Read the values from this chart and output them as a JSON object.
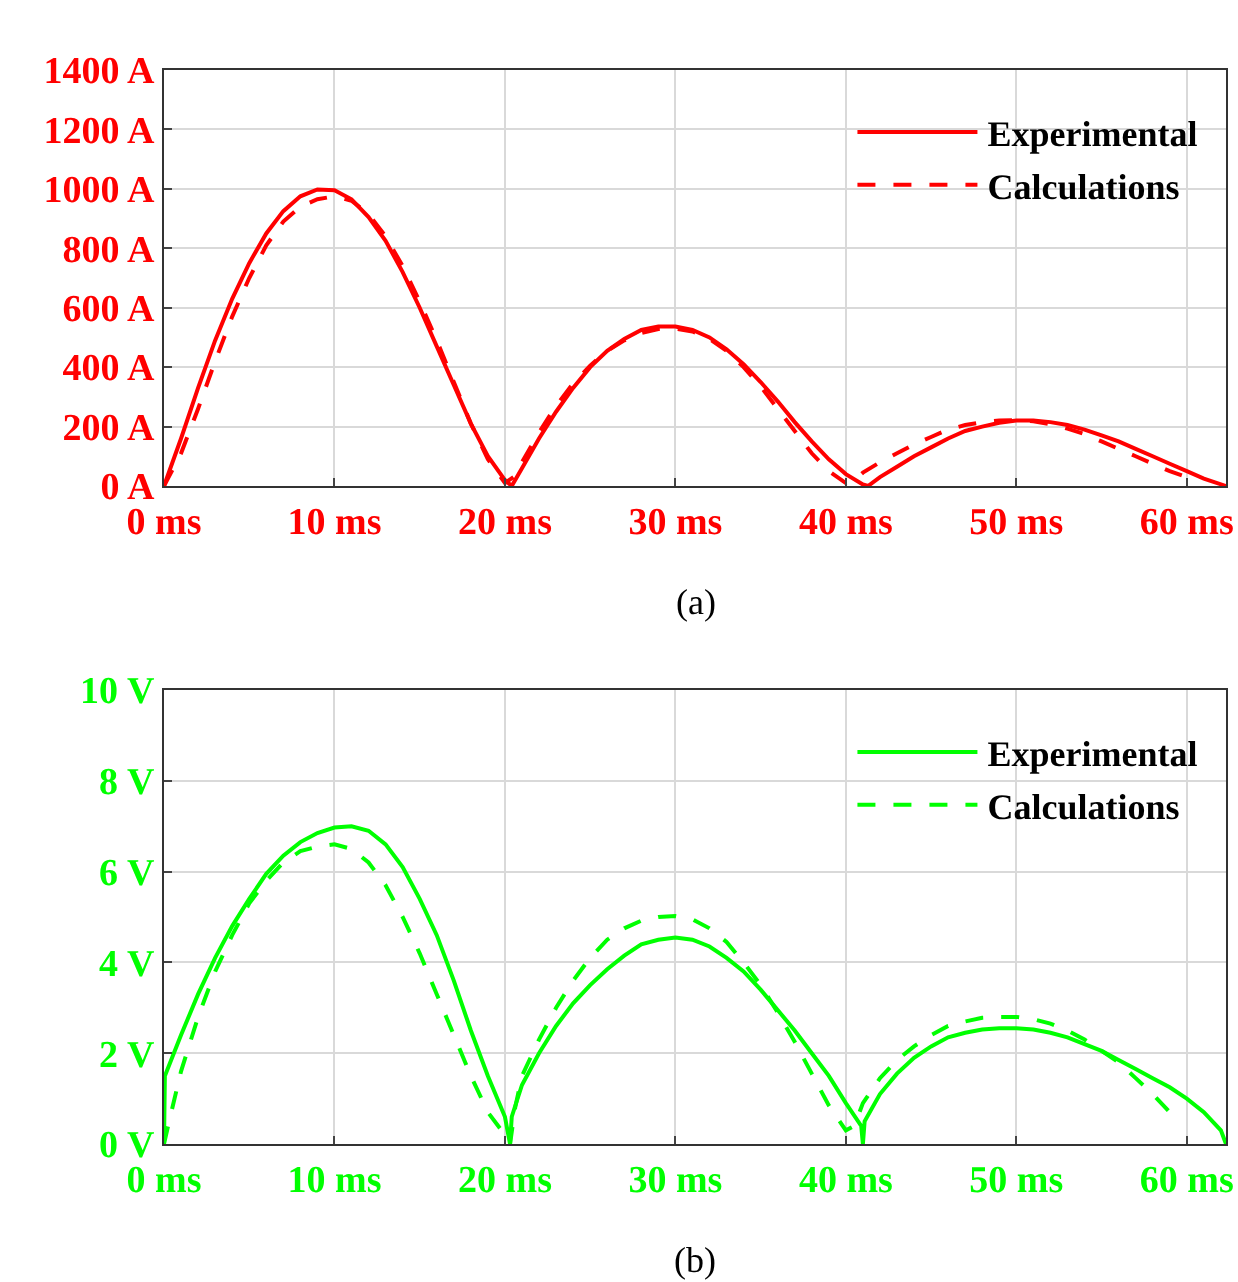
{
  "chart_data": [
    {
      "type": "line",
      "annotations": [
        "(a)"
      ],
      "legend": "top right",
      "grid": true,
      "xlim": [
        0,
        62.3
      ],
      "xticks": [
        {
          "value": 0,
          "label": "0 ms"
        },
        {
          "value": 10,
          "label": "10 ms"
        },
        {
          "value": 20,
          "label": "20 ms"
        },
        {
          "value": 30,
          "label": "30 ms"
        },
        {
          "value": 40,
          "label": "40 ms"
        },
        {
          "value": 50,
          "label": "50 ms"
        },
        {
          "value": 60,
          "label": "60 ms"
        }
      ],
      "ylim": [
        0,
        1400
      ],
      "yticks": [
        {
          "value": 0,
          "label": "0 A"
        },
        {
          "value": 200,
          "label": "200 A"
        },
        {
          "value": 400,
          "label": "400 A"
        },
        {
          "value": 600,
          "label": "600 A"
        },
        {
          "value": 800,
          "label": "800 A"
        },
        {
          "value": 1000,
          "label": "1000 A"
        },
        {
          "value": 1200,
          "label": "1200 A"
        },
        {
          "value": 1400,
          "label": "1400 A"
        }
      ],
      "series": [
        {
          "name": "Experimental",
          "color": "#ff0000",
          "line_style": "solid",
          "x": [
            0,
            1,
            2,
            3,
            4,
            5,
            6,
            7,
            8,
            9,
            10,
            11,
            12,
            13,
            14,
            15,
            16,
            17,
            18,
            19,
            20,
            20.4,
            21,
            22,
            23,
            24,
            25,
            26,
            27,
            28,
            29,
            30,
            31,
            32,
            33,
            34,
            35,
            36,
            37,
            38,
            39,
            40,
            41,
            41.3,
            42,
            43,
            44,
            45,
            46,
            47,
            48,
            49,
            50,
            51,
            52,
            53,
            54,
            55,
            56,
            57,
            58,
            59,
            60,
            61,
            62.3
          ],
          "values": [
            0,
            160,
            330,
            490,
            630,
            750,
            850,
            925,
            975,
            998,
            995,
            965,
            905,
            825,
            720,
            600,
            470,
            340,
            210,
            100,
            20,
            0,
            60,
            160,
            250,
            330,
            400,
            455,
            495,
            525,
            537,
            537,
            525,
            500,
            460,
            410,
            350,
            285,
            215,
            150,
            90,
            40,
            5,
            0,
            30,
            65,
            100,
            130,
            160,
            185,
            200,
            213,
            220,
            220,
            215,
            205,
            190,
            170,
            150,
            125,
            100,
            75,
            50,
            25,
            0
          ]
        },
        {
          "name": "Calculations",
          "color": "#ff0000",
          "line_style": "dashed",
          "x": [
            0,
            1,
            2,
            3,
            4,
            5,
            6,
            7,
            8,
            9,
            10,
            11,
            12,
            13,
            14,
            15,
            16,
            17,
            18,
            19,
            20,
            20.5,
            21,
            22,
            23,
            24,
            25,
            26,
            27,
            28,
            29,
            30,
            31,
            32,
            33,
            34,
            35,
            36,
            37,
            38,
            39,
            40,
            40.5,
            41,
            42,
            43,
            44,
            45,
            46,
            47,
            48,
            49,
            50,
            51,
            52,
            53,
            54,
            55,
            56,
            57,
            58,
            59,
            60,
            60.3
          ],
          "values": [
            0,
            110,
            260,
            420,
            570,
            700,
            810,
            890,
            940,
            965,
            975,
            960,
            915,
            840,
            740,
            620,
            490,
            350,
            210,
            90,
            10,
            30,
            80,
            180,
            270,
            345,
            405,
            455,
            490,
            515,
            528,
            530,
            520,
            495,
            455,
            400,
            335,
            260,
            185,
            110,
            50,
            10,
            20,
            45,
            80,
            110,
            140,
            165,
            190,
            205,
            215,
            220,
            222,
            218,
            208,
            193,
            175,
            150,
            125,
            100,
            75,
            50,
            30,
            20
          ]
        }
      ]
    },
    {
      "type": "line",
      "annotations": [
        "(b)"
      ],
      "legend": "top right",
      "grid": true,
      "xlim": [
        0,
        62.3
      ],
      "xticks": [
        {
          "value": 0,
          "label": "0 ms"
        },
        {
          "value": 10,
          "label": "10 ms"
        },
        {
          "value": 20,
          "label": "20 ms"
        },
        {
          "value": 30,
          "label": "30 ms"
        },
        {
          "value": 40,
          "label": "40 ms"
        },
        {
          "value": 50,
          "label": "50 ms"
        },
        {
          "value": 60,
          "label": "60 ms"
        }
      ],
      "ylim": [
        0,
        10
      ],
      "yticks": [
        {
          "value": 0,
          "label": "0 V"
        },
        {
          "value": 2,
          "label": "2 V"
        },
        {
          "value": 4,
          "label": "4 V"
        },
        {
          "value": 6,
          "label": "6 V"
        },
        {
          "value": 8,
          "label": "8 V"
        },
        {
          "value": 10,
          "label": "10 V"
        }
      ],
      "series": [
        {
          "name": "Experimental",
          "color": "#00ff00",
          "line_style": "solid",
          "x": [
            0,
            0.05,
            1,
            2,
            3,
            4,
            5,
            6,
            7,
            8,
            9,
            10,
            11,
            12,
            13,
            14,
            15,
            16,
            17,
            18,
            19,
            20,
            20.3,
            20.4,
            21,
            22,
            23,
            24,
            25,
            26,
            27,
            28,
            29,
            30,
            31,
            32,
            33,
            34,
            35,
            36,
            37,
            38,
            39,
            40,
            40.9,
            41,
            41.1,
            42,
            43,
            44,
            45,
            46,
            47,
            48,
            49,
            50,
            51,
            52,
            53,
            54,
            55,
            56,
            57,
            58,
            59,
            60,
            61,
            62,
            62.3
          ],
          "values": [
            0,
            1.5,
            2.4,
            3.3,
            4.1,
            4.8,
            5.4,
            5.95,
            6.35,
            6.65,
            6.85,
            6.97,
            7.0,
            6.9,
            6.6,
            6.1,
            5.4,
            4.6,
            3.6,
            2.5,
            1.5,
            0.6,
            0,
            0.6,
            1.3,
            2.0,
            2.6,
            3.1,
            3.5,
            3.85,
            4.15,
            4.4,
            4.5,
            4.55,
            4.5,
            4.35,
            4.1,
            3.8,
            3.4,
            2.95,
            2.5,
            2.0,
            1.5,
            0.9,
            0.4,
            0,
            0.5,
            1.1,
            1.55,
            1.9,
            2.15,
            2.35,
            2.45,
            2.52,
            2.55,
            2.55,
            2.52,
            2.45,
            2.35,
            2.2,
            2.05,
            1.85,
            1.65,
            1.45,
            1.25,
            1.0,
            0.7,
            0.3,
            0
          ]
        },
        {
          "name": "Calculations",
          "color": "#00ff00",
          "line_style": "dashed",
          "x": [
            0,
            0.3,
            1,
            2,
            3,
            4,
            5,
            6,
            7,
            8,
            9,
            10,
            11,
            12,
            13,
            14,
            15,
            16,
            17,
            18,
            19,
            20,
            20.3,
            20.6,
            21,
            22,
            23,
            24,
            25,
            26,
            27,
            28,
            29,
            30,
            31,
            32,
            33,
            34,
            35,
            36,
            37,
            38,
            39,
            40,
            40.5,
            41,
            42,
            43,
            44,
            45,
            46,
            47,
            48,
            49,
            50,
            51,
            52,
            53,
            54,
            55,
            56,
            57,
            58,
            59
          ],
          "values": [
            0,
            0.5,
            1.6,
            2.8,
            3.8,
            4.6,
            5.3,
            5.8,
            6.2,
            6.45,
            6.55,
            6.6,
            6.5,
            6.2,
            5.7,
            5.0,
            4.2,
            3.3,
            2.4,
            1.5,
            0.7,
            0.2,
            0,
            0.8,
            1.5,
            2.3,
            3.0,
            3.6,
            4.1,
            4.5,
            4.75,
            4.92,
            5.0,
            5.02,
            4.95,
            4.75,
            4.45,
            4.0,
            3.5,
            2.9,
            2.25,
            1.55,
            0.85,
            0.3,
            0.4,
            0.9,
            1.45,
            1.85,
            2.15,
            2.4,
            2.6,
            2.7,
            2.78,
            2.8,
            2.8,
            2.75,
            2.65,
            2.5,
            2.3,
            2.05,
            1.8,
            1.45,
            1.1,
            0.7
          ]
        }
      ]
    }
  ]
}
